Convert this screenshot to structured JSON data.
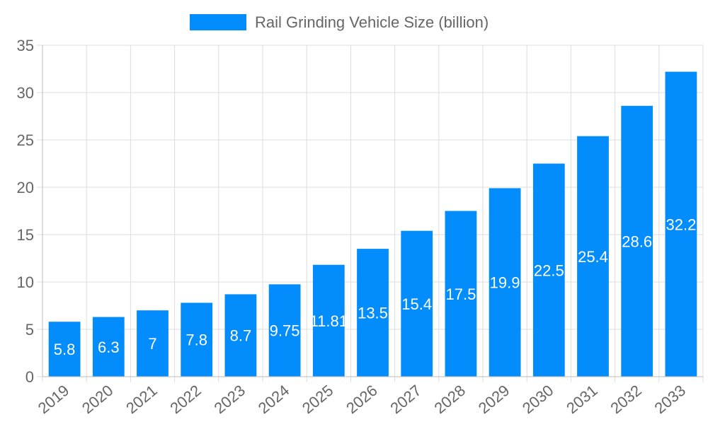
{
  "chart_data": {
    "type": "bar",
    "categories": [
      "2019",
      "2020",
      "2021",
      "2022",
      "2023",
      "2024",
      "2025",
      "2026",
      "2027",
      "2028",
      "2029",
      "2030",
      "2031",
      "2032",
      "2033"
    ],
    "series": [
      {
        "name": "Rail Grinding Vehicle Size (billion)",
        "values": [
          5.8,
          6.3,
          7,
          7.8,
          8.7,
          9.75,
          11.81,
          13.5,
          15.4,
          17.5,
          19.9,
          22.5,
          25.4,
          28.6,
          32.2
        ]
      }
    ],
    "ylim": [
      0,
      35
    ],
    "yticks": [
      0,
      5,
      10,
      15,
      20,
      25,
      30,
      35
    ],
    "grid": true,
    "legend": "top",
    "bar_color": "#038cfc",
    "data_labels": true
  }
}
